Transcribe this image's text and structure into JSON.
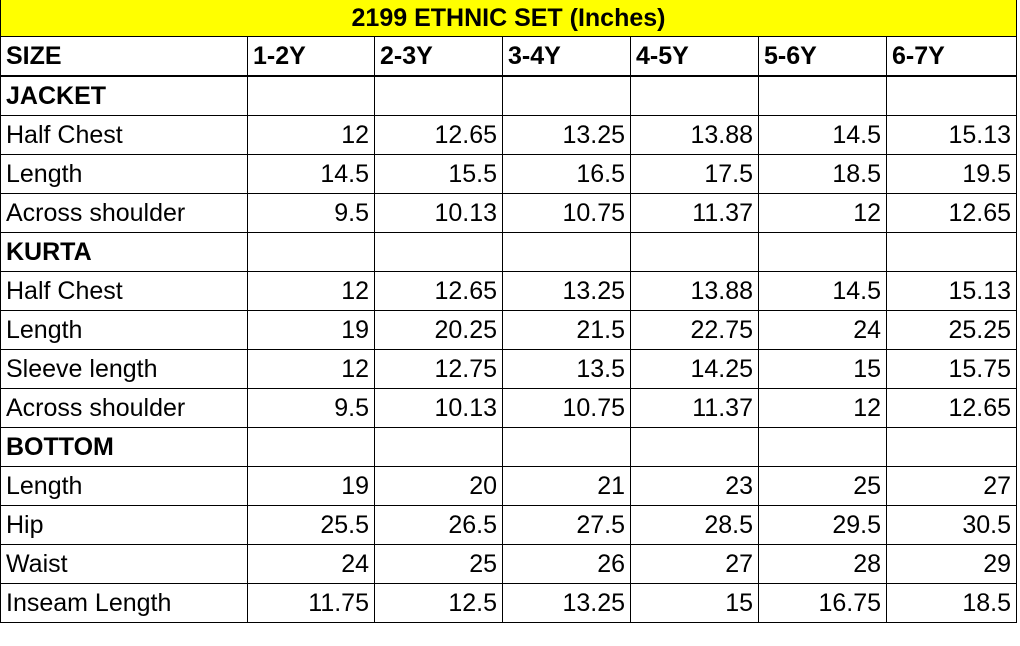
{
  "title": "2199 ETHNIC SET (Inches)",
  "header": {
    "label": "SIZE",
    "sizes": [
      "1-2Y",
      "2-3Y",
      "3-4Y",
      "4-5Y",
      "5-6Y",
      "6-7Y"
    ]
  },
  "rows": [
    {
      "label": "JACKET",
      "section": true,
      "values": []
    },
    {
      "label": "Half Chest",
      "values": [
        "12",
        "12.65",
        "13.25",
        "13.88",
        "14.5",
        "15.13"
      ]
    },
    {
      "label": "Length",
      "values": [
        "14.5",
        "15.5",
        "16.5",
        "17.5",
        "18.5",
        "19.5"
      ]
    },
    {
      "label": "Across shoulder",
      "values": [
        "9.5",
        "10.13",
        "10.75",
        "11.37",
        "12",
        "12.65"
      ]
    },
    {
      "label": "KURTA",
      "section": true,
      "values": []
    },
    {
      "label": "Half Chest",
      "values": [
        "12",
        "12.65",
        "13.25",
        "13.88",
        "14.5",
        "15.13"
      ]
    },
    {
      "label": "Length",
      "values": [
        "19",
        "20.25",
        "21.5",
        "22.75",
        "24",
        "25.25"
      ]
    },
    {
      "label": "Sleeve length",
      "values": [
        "12",
        "12.75",
        "13.5",
        "14.25",
        "15",
        "15.75"
      ]
    },
    {
      "label": "Across shoulder",
      "values": [
        "9.5",
        "10.13",
        "10.75",
        "11.37",
        "12",
        "12.65"
      ]
    },
    {
      "label": "BOTTOM",
      "section": true,
      "values": []
    },
    {
      "label": "Length",
      "values": [
        "19",
        "20",
        "21",
        "23",
        "25",
        "27"
      ]
    },
    {
      "label": "Hip",
      "values": [
        "25.5",
        "26.5",
        "27.5",
        "28.5",
        "29.5",
        "30.5"
      ]
    },
    {
      "label": "Waist",
      "values": [
        "24",
        "25",
        "26",
        "27",
        "28",
        "29"
      ]
    },
    {
      "label": "Inseam Length",
      "values": [
        "11.75",
        "12.5",
        "13.25",
        "15",
        "16.75",
        "18.5"
      ]
    }
  ]
}
